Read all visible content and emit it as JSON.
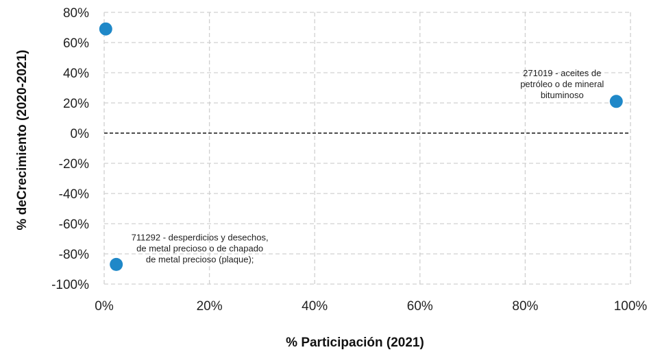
{
  "chart_data": {
    "type": "scatter",
    "xlabel": "% Participación (2021)",
    "ylabel": "% deCrecimiento (2020-2021)",
    "xlim": [
      0,
      100
    ],
    "ylim": [
      -100,
      80
    ],
    "x_ticks": [
      0,
      20,
      40,
      60,
      80,
      100
    ],
    "x_tick_labels": [
      "0%",
      "20%",
      "40%",
      "60%",
      "80%",
      "100%"
    ],
    "y_ticks": [
      80,
      60,
      40,
      20,
      0,
      -20,
      -40,
      -60,
      -80,
      -100
    ],
    "y_tick_labels": [
      "80%",
      "60%",
      "40%",
      "20%",
      "0%",
      "-20%",
      "-40%",
      "-60%",
      "-80%",
      "-100%"
    ],
    "grid": true,
    "zero_line": true,
    "marker_color": "#1f88c8",
    "points": [
      {
        "x": 0.3,
        "y": 69,
        "label": ""
      },
      {
        "x": 97.3,
        "y": 21,
        "label": "271019 - aceites de petróleo o de mineral bituminoso",
        "label_lines": [
          "271019 - aceites de",
          "petróleo o de mineral",
          "bituminoso"
        ]
      },
      {
        "x": 2.3,
        "y": -87,
        "label": "711292 - desperdicios y desechos, de metal precioso o de chapado de metal precioso (plaque);",
        "label_lines": [
          "711292 - desperdicios y desechos,",
          "de metal precioso o de chapado",
          "de metal precioso (plaque);"
        ]
      }
    ]
  }
}
